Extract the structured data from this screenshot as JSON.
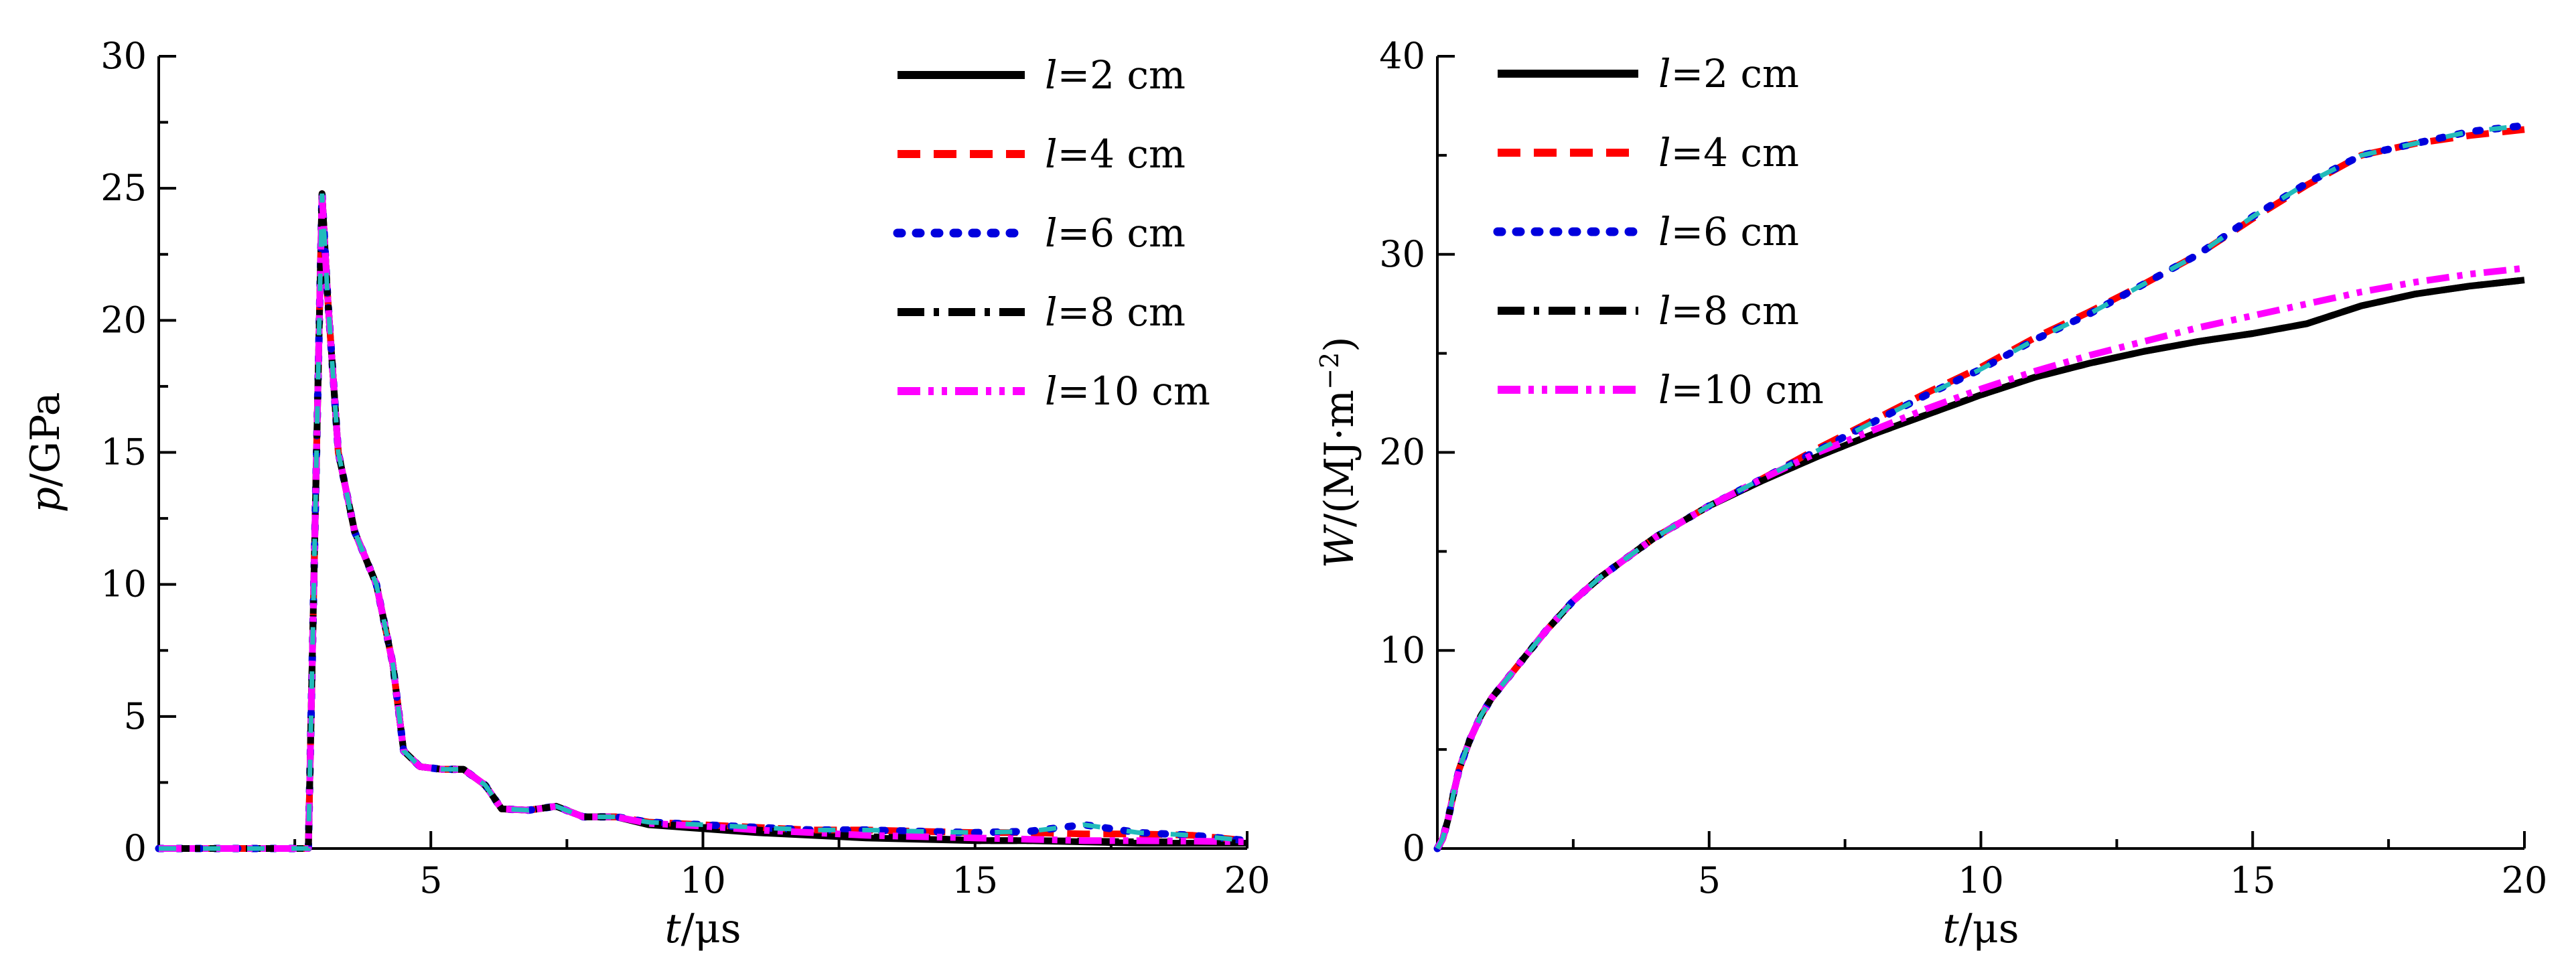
{
  "colors": {
    "l2": "#000000",
    "l4": "#ff0000",
    "l6": "#0000dd",
    "l8": "#000000",
    "l10": "#ff00ff",
    "overlap": "#22bbbb"
  },
  "chart_data": [
    {
      "type": "line",
      "title": "",
      "xlabel_var": "t",
      "xlabel_unit": "/μs",
      "ylabel_var": "p",
      "ylabel_unit": "/GPa",
      "xlim": [
        0,
        20
      ],
      "ylim": [
        0,
        30
      ],
      "xticks": [
        5,
        10,
        15,
        20
      ],
      "yticks": [
        0,
        5,
        10,
        15,
        20,
        25,
        30
      ],
      "legend_position": "top-right",
      "legend_prefix": "l",
      "series": [
        {
          "name": "=2 cm",
          "style": "solid",
          "x": [
            0,
            2.75,
            2.9,
            3.0,
            3.1,
            3.3,
            3.6,
            4.0,
            4.3,
            4.5,
            4.8,
            5.2,
            5.6,
            6.0,
            6.3,
            6.8,
            7.3,
            7.8,
            8.4,
            9.0,
            10,
            11,
            12,
            13,
            14,
            15,
            16,
            17,
            18,
            19,
            20
          ],
          "y": [
            0,
            0,
            15,
            24.8,
            21,
            15,
            12,
            10,
            7,
            3.7,
            3.1,
            3.0,
            3.0,
            2.4,
            1.5,
            1.45,
            1.6,
            1.2,
            1.2,
            0.9,
            0.75,
            0.6,
            0.5,
            0.4,
            0.35,
            0.3,
            0.3,
            0.25,
            0.2,
            0.2,
            0.2
          ]
        },
        {
          "name": "=4 cm",
          "style": "dashed",
          "x": [
            0,
            2.75,
            2.9,
            3.0,
            3.1,
            3.3,
            3.6,
            4.0,
            4.3,
            4.5,
            4.8,
            5.2,
            5.6,
            6.0,
            6.3,
            6.8,
            7.3,
            7.8,
            8.4,
            9.0,
            10,
            11,
            12,
            13,
            14,
            15,
            16,
            17,
            18,
            19,
            20
          ],
          "y": [
            0,
            0,
            15,
            24.8,
            21,
            15,
            12,
            10,
            7,
            3.7,
            3.1,
            3.0,
            3.0,
            2.4,
            1.5,
            1.45,
            1.6,
            1.2,
            1.2,
            1.0,
            0.9,
            0.8,
            0.7,
            0.7,
            0.65,
            0.6,
            0.6,
            0.55,
            0.55,
            0.5,
            0.3
          ]
        },
        {
          "name": "=6 cm",
          "style": "dotted",
          "x": [
            0,
            2.75,
            2.9,
            3.0,
            3.1,
            3.3,
            3.6,
            4.0,
            4.3,
            4.5,
            4.8,
            5.2,
            5.6,
            6.0,
            6.3,
            6.8,
            7.3,
            7.8,
            8.4,
            9.0,
            10,
            11,
            12,
            13,
            14,
            15,
            16,
            17,
            18,
            19,
            20
          ],
          "y": [
            0,
            0,
            15,
            24.8,
            21,
            15,
            12,
            10,
            7,
            3.7,
            3.1,
            3.0,
            3.0,
            2.4,
            1.5,
            1.45,
            1.6,
            1.2,
            1.2,
            1.0,
            0.9,
            0.8,
            0.7,
            0.7,
            0.65,
            0.6,
            0.65,
            0.9,
            0.6,
            0.5,
            0.3
          ]
        },
        {
          "name": "=8 cm",
          "style": "dashdot",
          "x": [
            0,
            2.75,
            2.9,
            3.0,
            3.1,
            3.3,
            3.6,
            4.0,
            4.3,
            4.5,
            4.8,
            5.2,
            5.6,
            6.0,
            6.3,
            6.8,
            7.3,
            7.8,
            8.4,
            9.0,
            10,
            11,
            12,
            13,
            14,
            15,
            16,
            17,
            18,
            19,
            20
          ],
          "y": [
            0,
            0,
            15,
            24.8,
            21,
            15,
            12,
            10,
            7,
            3.7,
            3.1,
            3.0,
            3.0,
            2.4,
            1.5,
            1.45,
            1.6,
            1.2,
            1.2,
            0.95,
            0.8,
            0.7,
            0.55,
            0.45,
            0.4,
            0.3,
            0.3,
            0.28,
            0.25,
            0.25,
            0.2
          ]
        },
        {
          "name": "=10 cm",
          "style": "dashdotdot",
          "x": [
            0,
            2.75,
            2.9,
            3.0,
            3.1,
            3.3,
            3.6,
            4.0,
            4.3,
            4.5,
            4.8,
            5.2,
            5.6,
            6.0,
            6.3,
            6.8,
            7.3,
            7.8,
            8.4,
            9.0,
            10,
            11,
            12,
            13,
            14,
            15,
            16,
            17,
            18,
            19,
            20
          ],
          "y": [
            0,
            0,
            15,
            24.8,
            21,
            15,
            12,
            10,
            7,
            3.7,
            3.1,
            3.0,
            3.0,
            2.4,
            1.5,
            1.45,
            1.6,
            1.2,
            1.2,
            0.95,
            0.85,
            0.7,
            0.6,
            0.5,
            0.45,
            0.4,
            0.35,
            0.3,
            0.3,
            0.28,
            0.25
          ]
        }
      ]
    },
    {
      "type": "line",
      "title": "",
      "xlabel_var": "t",
      "xlabel_unit": "/μs",
      "ylabel_var": "W",
      "ylabel_unit": "/(MJ·m",
      "ylabel_sup": "−2",
      "ylabel_close": ")",
      "xlim": [
        0,
        20
      ],
      "ylim": [
        0,
        40
      ],
      "xticks": [
        5,
        10,
        15,
        20
      ],
      "yticks": [
        0,
        10,
        20,
        30,
        40
      ],
      "legend_position": "top-left",
      "legend_prefix": "l",
      "series": [
        {
          "name": "=2 cm",
          "style": "solid",
          "x": [
            0,
            0.1,
            0.2,
            0.3,
            0.4,
            0.6,
            0.8,
            1.0,
            1.5,
            2.0,
            2.5,
            3.0,
            3.5,
            4.0,
            5.0,
            6.0,
            7.0,
            8.0,
            9.0,
            10,
            11,
            12,
            13,
            14,
            15,
            16,
            17,
            18,
            19,
            20
          ],
          "y": [
            0,
            0.5,
            1.5,
            2.8,
            4.0,
            5.5,
            6.7,
            7.6,
            9.3,
            11.0,
            12.5,
            13.7,
            14.7,
            15.7,
            17.3,
            18.6,
            19.8,
            20.9,
            21.9,
            22.9,
            23.8,
            24.5,
            25.1,
            25.6,
            26.0,
            26.5,
            27.4,
            28.0,
            28.4,
            28.7
          ]
        },
        {
          "name": "=4 cm",
          "style": "dashed",
          "x": [
            0,
            0.1,
            0.2,
            0.3,
            0.4,
            0.6,
            0.8,
            1.0,
            1.5,
            2.0,
            2.5,
            3.0,
            3.5,
            4.0,
            5.0,
            6.0,
            7.0,
            8.0,
            9.0,
            10,
            11,
            12,
            13,
            14,
            15,
            16,
            17,
            18,
            19,
            20
          ],
          "y": [
            0,
            0.5,
            1.5,
            2.8,
            4.0,
            5.5,
            6.7,
            7.6,
            9.3,
            11.0,
            12.5,
            13.7,
            14.7,
            15.7,
            17.3,
            18.7,
            20.2,
            21.6,
            23.0,
            24.3,
            25.8,
            27.1,
            28.5,
            30.0,
            31.8,
            33.5,
            35.0,
            35.6,
            36.0,
            36.3
          ]
        },
        {
          "name": "=6 cm",
          "style": "dotted",
          "x": [
            0,
            0.1,
            0.2,
            0.3,
            0.4,
            0.6,
            0.8,
            1.0,
            1.5,
            2.0,
            2.5,
            3.0,
            3.5,
            4.0,
            5.0,
            6.0,
            7.0,
            8.0,
            9.0,
            10,
            11,
            12,
            13,
            14,
            15,
            16,
            17,
            18,
            19,
            20
          ],
          "y": [
            0,
            0.5,
            1.5,
            2.8,
            4.0,
            5.5,
            6.7,
            7.6,
            9.3,
            11.0,
            12.5,
            13.7,
            14.7,
            15.7,
            17.3,
            18.7,
            20.1,
            21.5,
            22.9,
            24.2,
            25.7,
            27.0,
            28.5,
            30.0,
            31.9,
            33.6,
            35.0,
            35.6,
            36.2,
            36.5
          ]
        },
        {
          "name": "=8 cm",
          "style": "dashdot",
          "x": [
            0,
            0.1,
            0.2,
            0.3,
            0.4,
            0.6,
            0.8,
            1.0,
            1.5,
            2.0,
            2.5,
            3.0,
            3.5,
            4.0,
            5.0,
            6.0,
            7.0,
            8.0,
            9.0,
            10,
            11,
            12,
            13,
            14,
            15,
            16,
            17,
            18,
            19,
            20
          ],
          "y": [
            0,
            0.5,
            1.5,
            2.8,
            4.0,
            5.5,
            6.7,
            7.6,
            9.3,
            11.0,
            12.5,
            13.7,
            14.7,
            15.7,
            17.3,
            18.6,
            19.8,
            20.9,
            21.9,
            22.9,
            23.8,
            24.5,
            25.1,
            25.6,
            26.0,
            26.5,
            27.4,
            28.0,
            28.4,
            28.7
          ]
        },
        {
          "name": "=10 cm",
          "style": "dashdotdot",
          "x": [
            0,
            0.1,
            0.2,
            0.3,
            0.4,
            0.6,
            0.8,
            1.0,
            1.5,
            2.0,
            2.5,
            3.0,
            3.5,
            4.0,
            5.0,
            6.0,
            7.0,
            8.0,
            9.0,
            10,
            11,
            12,
            13,
            14,
            15,
            16,
            17,
            18,
            19,
            20
          ],
          "y": [
            0,
            0.5,
            1.5,
            2.8,
            4.0,
            5.5,
            6.7,
            7.6,
            9.3,
            11.0,
            12.5,
            13.7,
            14.7,
            15.7,
            17.3,
            18.7,
            20.0,
            21.1,
            22.2,
            23.2,
            24.1,
            24.9,
            25.6,
            26.3,
            26.9,
            27.5,
            28.1,
            28.6,
            29.0,
            29.3
          ]
        }
      ]
    }
  ]
}
